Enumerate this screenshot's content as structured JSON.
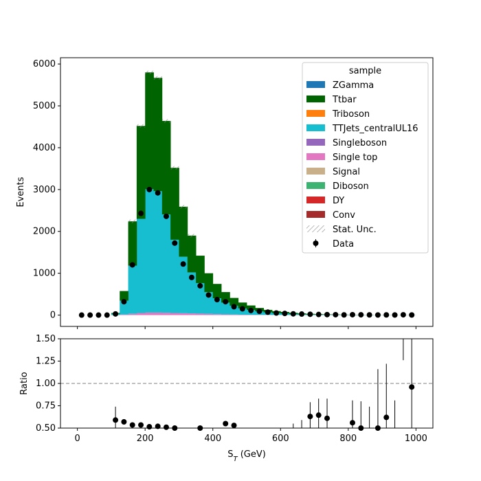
{
  "chart_data": [
    {
      "type": "bar",
      "stacked": true,
      "xlim": [
        -50,
        1050
      ],
      "ylim": [
        -270,
        6150
      ],
      "ylabel": "Events",
      "xticks": [
        0,
        200,
        400,
        600,
        800,
        1000
      ],
      "yticks": [
        0,
        1000,
        2000,
        3000,
        4000,
        5000,
        6000
      ],
      "tick_labels": [
        "0",
        "1000",
        "2000",
        "3000",
        "4000",
        "5000",
        "6000"
      ],
      "bin_edges": [
        100,
        125,
        150,
        175,
        200,
        225,
        250,
        275,
        300,
        325,
        350,
        375,
        400,
        425,
        450,
        475,
        500,
        525,
        550,
        575,
        600,
        625,
        650,
        675,
        700,
        725,
        750,
        775,
        800,
        825,
        850,
        875,
        900,
        925,
        950,
        975,
        1000
      ],
      "series": [
        {
          "name": "Single top",
          "color": "#e377c2",
          "values": [
            0,
            15,
            30,
            50,
            60,
            60,
            55,
            50,
            45,
            40,
            35,
            28,
            22,
            18,
            14,
            10,
            8,
            6,
            5,
            4,
            3,
            2,
            2,
            1,
            1,
            1,
            1,
            1,
            0,
            0,
            0,
            0,
            0,
            0,
            0,
            0
          ]
        },
        {
          "name": "TTJets_centralUL16",
          "color": "#17becf",
          "values": [
            30,
            330,
            1150,
            2250,
            2950,
            2900,
            2350,
            1750,
            1350,
            980,
            730,
            520,
            380,
            280,
            210,
            150,
            115,
            85,
            60,
            45,
            35,
            25,
            18,
            13,
            10,
            8,
            6,
            5,
            4,
            3,
            2,
            2,
            2,
            1,
            1,
            1
          ]
        },
        {
          "name": "Ttbar",
          "color": "#006400",
          "values": [
            20,
            230,
            1060,
            2220,
            2790,
            2710,
            2235,
            1720,
            1195,
            880,
            655,
            452,
            343,
            252,
            186,
            140,
            107,
            79,
            60,
            46,
            37,
            28,
            20,
            16,
            12,
            9,
            8,
            6,
            4,
            3,
            2,
            2,
            2,
            1,
            1,
            1
          ]
        }
      ],
      "data_points": {
        "name": "Data",
        "x": [
          12.5,
          37.5,
          62.5,
          87.5,
          112.5,
          137.5,
          162.5,
          187.5,
          212.5,
          237.5,
          262.5,
          287.5,
          312.5,
          337.5,
          362.5,
          387.5,
          412.5,
          437.5,
          462.5,
          487.5,
          512.5,
          537.5,
          562.5,
          587.5,
          612.5,
          637.5,
          662.5,
          687.5,
          712.5,
          737.5,
          762.5,
          787.5,
          812.5,
          837.5,
          862.5,
          887.5,
          912.5,
          937.5,
          962.5,
          987.5
        ],
        "y": [
          0,
          0,
          0,
          0,
          28,
          320,
          1200,
          2430,
          3000,
          2920,
          2360,
          1720,
          1220,
          900,
          700,
          480,
          370,
          320,
          200,
          150,
          110,
          90,
          70,
          50,
          40,
          30,
          25,
          20,
          15,
          12,
          10,
          5,
          10,
          8,
          5,
          3,
          5,
          3,
          8,
          3
        ]
      },
      "legend": {
        "title": "sample",
        "position": "top-right",
        "entries": [
          {
            "label": "ZGamma",
            "color": "#1f77b4",
            "kind": "patch"
          },
          {
            "label": "Ttbar",
            "color": "#006400",
            "kind": "patch"
          },
          {
            "label": "Triboson",
            "color": "#ff7f0e",
            "kind": "patch"
          },
          {
            "label": "TTJets_centralUL16",
            "color": "#17becf",
            "kind": "patch"
          },
          {
            "label": "Singleboson",
            "color": "#9467bd",
            "kind": "patch"
          },
          {
            "label": "Single top",
            "color": "#e377c2",
            "kind": "patch"
          },
          {
            "label": "Signal",
            "color": "#c9b08b",
            "kind": "patch"
          },
          {
            "label": "Diboson",
            "color": "#3cb371",
            "kind": "patch"
          },
          {
            "label": "DY",
            "color": "#d62728",
            "kind": "patch"
          },
          {
            "label": "Conv",
            "color": "#a52a2a",
            "kind": "patch"
          },
          {
            "label": "Stat. Unc.",
            "color": "#888888",
            "kind": "hatch"
          },
          {
            "label": "Data",
            "color": "#000000",
            "kind": "errorbar"
          }
        ]
      }
    },
    {
      "type": "scatter",
      "xlabel": "S_T (GeV)",
      "ylabel": "Ratio",
      "xlim": [
        -50,
        1050
      ],
      "ylim": [
        0.5,
        1.5
      ],
      "xticks": [
        0,
        200,
        400,
        600,
        800,
        1000
      ],
      "xtick_labels": [
        "0",
        "200",
        "400",
        "600",
        "800",
        "1000"
      ],
      "yticks": [
        0.5,
        0.75,
        1.0,
        1.25,
        1.5
      ],
      "ytick_labels": [
        "0.50",
        "0.75",
        "1.00",
        "1.25",
        "1.50"
      ],
      "reference_line": 1.0,
      "points": {
        "x": [
          112.5,
          137.5,
          162.5,
          187.5,
          212.5,
          237.5,
          262.5,
          287.5,
          362.5,
          437.5,
          462.5,
          687.5,
          712.5,
          737.5,
          812.5,
          837.5,
          887.5,
          912.5,
          987.5
        ],
        "y": [
          0.59,
          0.57,
          0.535,
          0.535,
          0.515,
          0.52,
          0.51,
          0.5,
          0.5,
          0.55,
          0.53,
          0.63,
          0.645,
          0.61,
          0.56,
          0.5,
          0.5,
          0.62,
          0.96
        ],
        "err_high": [
          0.74,
          0.6,
          0.55,
          0.545,
          0.525,
          0.53,
          0.52,
          0.51,
          0.51,
          0.56,
          0.55,
          0.79,
          0.83,
          0.83,
          0.81,
          0.8,
          1.16,
          1.22,
          1.5
        ],
        "err_low": [
          0.5,
          0.54,
          0.52,
          0.525,
          0.505,
          0.51,
          0.5,
          0.5,
          0.5,
          0.54,
          0.51,
          0.5,
          0.5,
          0.5,
          0.5,
          0.5,
          0.5,
          0.5,
          0.5
        ]
      },
      "extra_errorbars": [
        {
          "x": 637.5,
          "low": 0.5,
          "high": 0.55
        },
        {
          "x": 662.5,
          "low": 0.5,
          "high": 0.59
        },
        {
          "x": 862.5,
          "low": 0.5,
          "high": 0.74
        },
        {
          "x": 937.5,
          "low": 0.5,
          "high": 0.81
        },
        {
          "x": 962.5,
          "low": 1.26,
          "high": 1.5
        }
      ]
    }
  ]
}
